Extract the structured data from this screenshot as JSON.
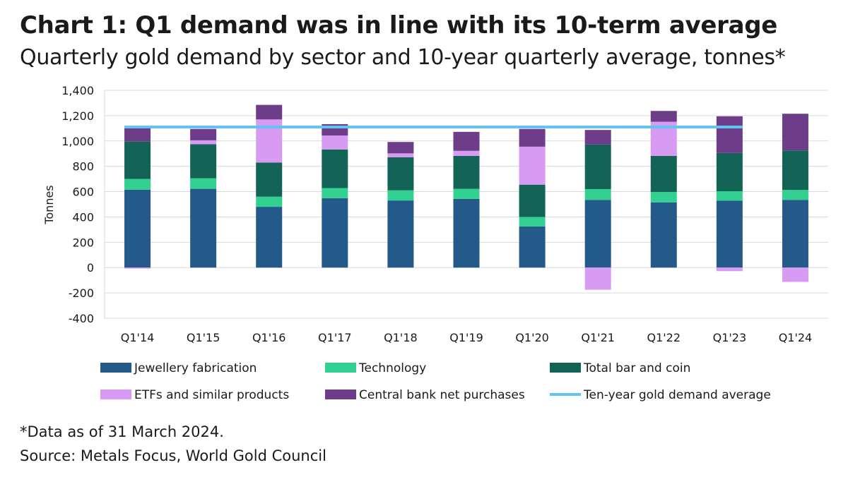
{
  "title": "Chart 1: Q1 demand was in line with its 10-term average",
  "subtitle": "Quarterly gold demand by sector and 10-year quarterly average, tonnes*",
  "footnote": "*Data as of 31 March 2024.",
  "source": "Source: Metals Focus, World Gold Council",
  "chart_data": {
    "type": "bar",
    "stacked": true,
    "categories": [
      "Q1'14",
      "Q1'15",
      "Q1'16",
      "Q1'17",
      "Q1'18",
      "Q1'19",
      "Q1'20",
      "Q1'21",
      "Q1'22",
      "Q1'23",
      "Q1'24"
    ],
    "ylabel": "Tonnes",
    "ylim": [
      -400,
      1400
    ],
    "yticks": [
      -400,
      -200,
      0,
      200,
      400,
      600,
      800,
      1000,
      1200,
      1400
    ],
    "ytick_labels": [
      "-400",
      "-200",
      "0",
      "200",
      "400",
      "600",
      "800",
      "1,000",
      "1,200",
      "1,400"
    ],
    "grid": true,
    "legend_position": "bottom",
    "series": [
      {
        "name": "Jewellery fabrication",
        "color": "#245a8a",
        "values": [
          615,
          622,
          480,
          548,
          530,
          542,
          325,
          535,
          515,
          528,
          535
        ]
      },
      {
        "name": "Technology",
        "color": "#33d191",
        "values": [
          85,
          83,
          80,
          80,
          80,
          80,
          75,
          85,
          82,
          75,
          78
        ]
      },
      {
        "name": "Total bar and coin",
        "color": "#136456",
        "values": [
          295,
          270,
          270,
          305,
          262,
          260,
          255,
          352,
          285,
          302,
          312
        ]
      },
      {
        "name": "ETFs and similar products",
        "color": "#d89bf3",
        "values": [
          -8,
          30,
          340,
          110,
          30,
          40,
          300,
          -175,
          270,
          -28,
          -113
        ]
      },
      {
        "name": "Central bank net purchases",
        "color": "#6e3d8a",
        "values": [
          120,
          90,
          115,
          90,
          90,
          150,
          140,
          115,
          85,
          290,
          290
        ]
      }
    ],
    "line": {
      "name": "Ten-year gold demand average",
      "color": "#63c3f2",
      "value": 1110,
      "from": "Q1'14",
      "to": "Q1'23"
    }
  }
}
